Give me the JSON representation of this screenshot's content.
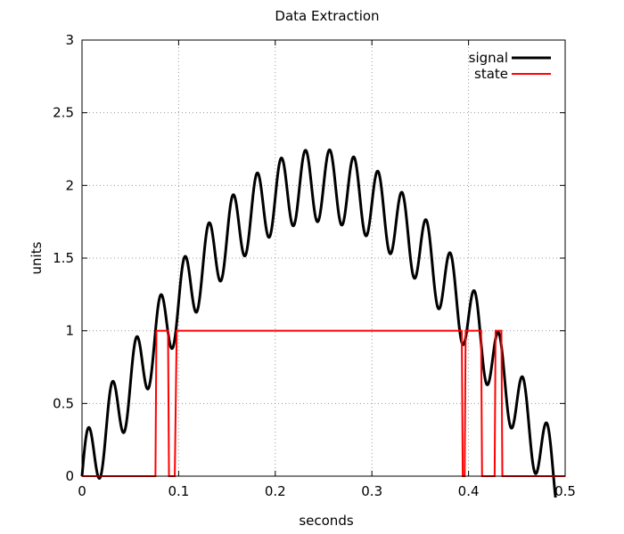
{
  "chart_data": {
    "type": "line",
    "title": "Data Extraction",
    "xlabel": "seconds",
    "ylabel": "units",
    "xlim": [
      0,
      0.5
    ],
    "ylim": [
      0,
      3
    ],
    "x_ticks": [
      "0",
      "0.1",
      "0.2",
      "0.3",
      "0.4",
      "0.5"
    ],
    "y_ticks": [
      "0",
      "0.5",
      "1",
      "1.5",
      "2",
      "2.5",
      "3"
    ],
    "grid": true,
    "legend_position": "top-right",
    "series": [
      {
        "name": "signal",
        "color": "#000000",
        "model": "envelope plus oscillation",
        "envelope_peak": 2.0,
        "oscillation_amplitude": 0.25,
        "oscillation_frequency_hz": 40,
        "x_start": 0,
        "x_end": 0.49
      },
      {
        "name": "state",
        "color": "#ff0000",
        "points": [
          [
            0,
            0
          ],
          [
            0.076,
            0
          ],
          [
            0.077,
            1
          ],
          [
            0.089,
            1
          ],
          [
            0.09,
            0
          ],
          [
            0.096,
            0
          ],
          [
            0.098,
            1
          ],
          [
            0.393,
            1
          ],
          [
            0.394,
            0
          ],
          [
            0.396,
            0
          ],
          [
            0.397,
            1
          ],
          [
            0.413,
            1
          ],
          [
            0.414,
            0
          ],
          [
            0.427,
            0
          ],
          [
            0.428,
            1
          ],
          [
            0.434,
            1
          ],
          [
            0.435,
            0
          ],
          [
            0.5,
            0
          ]
        ]
      }
    ]
  }
}
